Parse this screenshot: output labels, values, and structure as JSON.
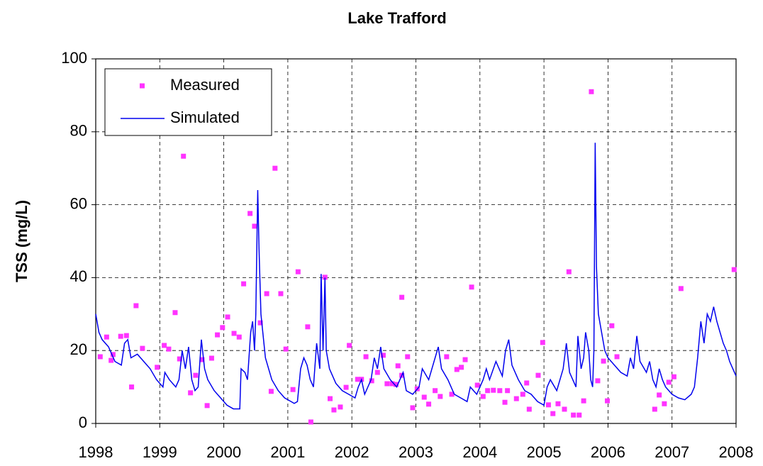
{
  "chart_data": {
    "type": "line",
    "title": "Lake Trafford",
    "ylabel": "TSS (mg/L)",
    "xlim": [
      1998,
      2008
    ],
    "xticks": [
      1998,
      1999,
      2000,
      2001,
      2002,
      2003,
      2004,
      2005,
      2006,
      2007,
      2008
    ],
    "ylim": [
      0,
      100
    ],
    "yticks": [
      0,
      20,
      40,
      60,
      80,
      100
    ],
    "grid": true,
    "legend": "upper left",
    "series": [
      {
        "name": "Measured",
        "type": "scatter",
        "color": "#ff33ff",
        "x": [
          1998.07,
          1998.17,
          1998.24,
          1998.27,
          1998.39,
          1998.48,
          1998.56,
          1998.63,
          1998.73,
          1998.96,
          1999.07,
          1999.14,
          1999.24,
          1999.31,
          1999.37,
          1999.48,
          1999.56,
          1999.66,
          1999.74,
          1999.81,
          1999.9,
          1999.98,
          2000.06,
          2000.16,
          2000.24,
          2000.31,
          2000.41,
          2000.48,
          2000.57,
          2000.67,
          2000.74,
          2000.8,
          2000.89,
          2000.97,
          2001.08,
          2001.16,
          2001.31,
          2001.36,
          2001.58,
          2001.66,
          2001.72,
          2001.82,
          2001.91,
          2001.96,
          2002.09,
          2002.15,
          2002.22,
          2002.31,
          2002.4,
          2002.49,
          2002.55,
          2002.63,
          2002.69,
          2002.72,
          2002.78,
          2002.78,
          2002.87,
          2002.95,
          2003.02,
          2003.13,
          2003.2,
          2003.3,
          2003.38,
          2003.48,
          2003.56,
          2003.64,
          2003.71,
          2003.77,
          2003.87,
          2003.96,
          2004.05,
          2004.12,
          2004.21,
          2004.31,
          2004.39,
          2004.43,
          2004.57,
          2004.67,
          2004.73,
          2004.77,
          2004.91,
          2004.98,
          2005.07,
          2005.14,
          2005.22,
          2005.32,
          2005.39,
          2005.46,
          2005.55,
          2005.62,
          2005.74,
          2005.84,
          2005.93,
          2005.99,
          2006.06,
          2006.14,
          2006.73,
          2006.8,
          2006.88,
          2006.95,
          2007.03,
          2007.14,
          2007.97
        ],
        "values": [
          18.3,
          23.7,
          17.3,
          18.9,
          23.9,
          24.1,
          10,
          32.3,
          20.6,
          15.4,
          21.4,
          20.4,
          30.4,
          17.7,
          73.3,
          8.4,
          13.2,
          17.5,
          4.9,
          17.9,
          24.3,
          26.3,
          29.2,
          24.7,
          23.7,
          38.3,
          57.6,
          54.1,
          27.6,
          35.6,
          8.8,
          70,
          35.6,
          20.4,
          9.3,
          41.6,
          26.5,
          0.4,
          40.1,
          6.8,
          3.7,
          4.5,
          9.9,
          21.4,
          12.1,
          12.1,
          18.3,
          11.7,
          14,
          18.7,
          10.9,
          10.9,
          10.7,
          15.8,
          34.6,
          13.2,
          18.3,
          4.3,
          9.5,
          7.2,
          5.3,
          9,
          7.4,
          18.3,
          8,
          14.8,
          15.4,
          17.5,
          37.4,
          10.5,
          7.4,
          9,
          9.1,
          9,
          5.8,
          9,
          6.8,
          8,
          11.1,
          3.9,
          13.2,
          22.2,
          5.1,
          2.7,
          5.4,
          3.9,
          41.6,
          2.3,
          2.3,
          6.2,
          91,
          11.7,
          17.1,
          6.2,
          26.8,
          18.3,
          3.9,
          7.8,
          5.4,
          11.3,
          12.8,
          37,
          42.2
        ]
      },
      {
        "name": "Simulated",
        "type": "line",
        "color": "#0000ee",
        "x": [
          1998.0,
          1998.05,
          1998.1,
          1998.2,
          1998.3,
          1998.4,
          1998.45,
          1998.5,
          1998.55,
          1998.65,
          1998.75,
          1998.85,
          1998.95,
          1999.0,
          1999.05,
          1999.08,
          1999.15,
          1999.25,
          1999.3,
          1999.35,
          1999.4,
          1999.45,
          1999.5,
          1999.55,
          1999.6,
          1999.65,
          1999.7,
          1999.75,
          1999.85,
          1999.95,
          2000.05,
          2000.15,
          2000.25,
          2000.27,
          2000.33,
          2000.37,
          2000.42,
          2000.45,
          2000.48,
          2000.5,
          2000.53,
          2000.55,
          2000.58,
          2000.65,
          2000.75,
          2000.85,
          2000.95,
          2001.05,
          2001.1,
          2001.15,
          2001.2,
          2001.25,
          2001.3,
          2001.35,
          2001.4,
          2001.45,
          2001.5,
          2001.52,
          2001.55,
          2001.58,
          2001.6,
          2001.65,
          2001.75,
          2001.85,
          2001.95,
          2002.05,
          2002.1,
          2002.15,
          2002.2,
          2002.3,
          2002.35,
          2002.4,
          2002.45,
          2002.5,
          2002.6,
          2002.7,
          2002.8,
          2002.85,
          2002.95,
          2003.05,
          2003.1,
          2003.2,
          2003.3,
          2003.35,
          2003.4,
          2003.5,
          2003.6,
          2003.7,
          2003.8,
          2003.85,
          2003.95,
          2004.05,
          2004.1,
          2004.15,
          2004.25,
          2004.35,
          2004.4,
          2004.45,
          2004.5,
          2004.6,
          2004.7,
          2004.8,
          2004.9,
          2005.0,
          2005.05,
          2005.1,
          2005.2,
          2005.3,
          2005.35,
          2005.4,
          2005.45,
          2005.5,
          2005.53,
          2005.58,
          2005.62,
          2005.65,
          2005.7,
          2005.73,
          2005.76,
          2005.78,
          2005.8,
          2005.82,
          2005.85,
          2005.9,
          2005.95,
          2006.0,
          2006.1,
          2006.2,
          2006.3,
          2006.35,
          2006.4,
          2006.45,
          2006.5,
          2006.6,
          2006.65,
          2006.7,
          2006.75,
          2006.8,
          2006.85,
          2006.9,
          2007.0,
          2007.1,
          2007.2,
          2007.3,
          2007.35,
          2007.4,
          2007.45,
          2007.5,
          2007.55,
          2007.6,
          2007.65,
          2007.7,
          2007.75,
          2007.8,
          2007.85,
          2007.9,
          2007.95,
          2008.0
        ],
        "values": [
          30,
          25,
          23,
          21,
          17,
          16,
          22,
          23,
          18,
          19,
          17,
          15,
          12,
          11,
          10,
          14,
          12,
          10,
          12,
          20,
          15,
          21,
          12,
          9,
          10,
          23,
          15,
          12,
          9,
          7,
          5,
          4,
          4,
          15,
          14,
          12,
          25,
          28,
          20,
          30,
          64,
          48,
          30,
          18,
          12,
          9,
          7,
          6,
          5.5,
          6,
          15,
          18,
          16,
          12,
          10,
          22,
          15,
          41,
          20,
          40,
          20,
          15,
          11,
          9,
          8,
          7,
          10,
          12,
          8,
          12,
          18,
          15,
          21,
          15,
          12,
          10,
          14,
          9,
          8,
          10,
          15,
          12,
          18,
          21,
          15,
          12,
          8,
          7,
          6,
          10,
          8,
          12,
          15,
          12,
          17,
          13,
          20,
          23,
          16,
          12,
          9,
          8,
          6,
          5,
          10,
          12,
          9,
          15,
          22,
          14,
          12,
          10,
          24,
          15,
          18,
          25,
          20,
          12,
          10,
          20,
          77,
          43,
          30,
          25,
          20,
          18,
          16,
          14,
          13,
          18,
          15,
          24,
          17,
          14,
          17,
          12,
          10,
          15,
          12,
          10,
          8,
          7,
          6.5,
          8,
          10,
          18,
          28,
          22,
          30,
          28,
          32,
          28,
          25,
          22,
          20,
          17,
          15,
          13
        ]
      }
    ]
  }
}
